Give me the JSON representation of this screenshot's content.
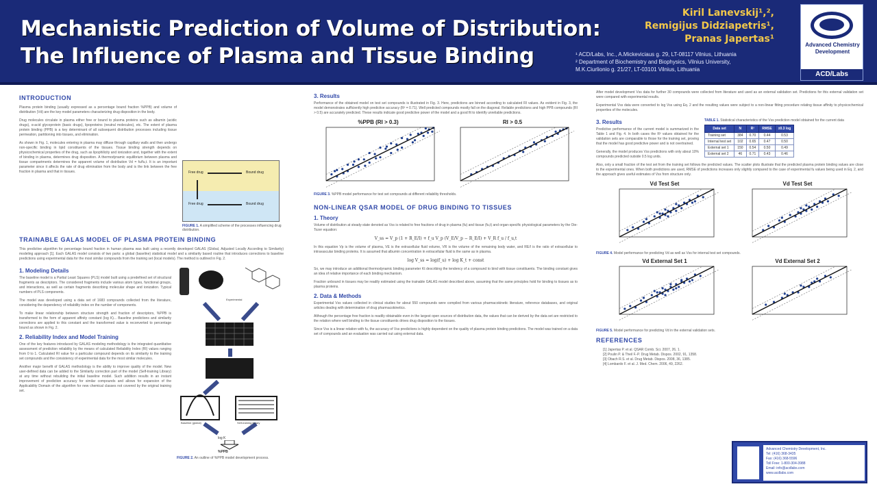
{
  "header": {
    "title_line1": "Mechanistic Prediction of Volume of Distribution:",
    "title_line2": "The Influence of Plasma and Tissue Binding",
    "authors": [
      "Kiril Lanevskij¹,²,",
      "Remigijus Didziapetris¹,",
      "Pranas Japertas¹"
    ],
    "affiliations": [
      "¹ ACD/Labs, Inc., A.Mickeviciaus g. 29, LT-08117 Vilnius, Lithuania",
      "² Department of Biochemistry and Biophysics, Vilnius University,",
      "  M.K.Ciurlionio g. 21/27, LT-03101 Vilnius, Lithuania"
    ],
    "logo_text": "Advanced Chemistry Development",
    "logo_brand": "ACD/Labs"
  },
  "col1": {
    "intro_heading": "INTRODUCTION",
    "intro_p1": "Plasma protein binding (usually expressed as a percentage bound fraction %PPB) and volume of distribution (Vd) are the key model parameters characterizing drug disposition in the body.",
    "intro_p2": "Drug molecules circulate in plasma either free or bound to plasma proteins such as albumin (acidic drugs), α-acid glycoprotein (basic drugs), lipoproteins (neutral molecules), etc. The extent of plasma protein binding (PPB) is a key determinant of all subsequent distribution processes including tissue permeation, partitioning into tissues, and elimination.",
    "intro_p3": "As shown in Fig. 1, molecules entering in plasma may diffuse through capillary walls and then undergo non-specific binding in lipid constituents of the tissues. Tissue binding strength depends on physicochemical properties of the drug, such as lipophilicity and ionization and, together with the extent of binding in plasma, determines drug disposition. A thermodynamic equilibrium between plasma and tissue compartments determines the apparent volume of distribution Vd = fu/fu,t. It is an important parameter since it affects the rate of drug elimination from the body and is the link between the free fraction in plasma and that in tissues.",
    "fig1_caption_label": "FIGURE 1.",
    "fig1_caption": "A simplified scheme of the processes influencing drug distribution.",
    "fig1_free_top": "Free drug",
    "fig1_bound_top": "Bound drug",
    "fig1_free_bot": "Free drug",
    "fig1_bound_bot": "Bound drug",
    "galas_heading": "TRAINABLE GALAS MODEL OF PLASMA PROTEIN BINDING",
    "galas_p1": "This predictive algorithm for percentage bound fraction in human plasma was built using a recently developed GALAS (Global, Adjusted Locally According to Similarity) modeling approach [1]. Each GALAS model consists of two parts: a global (baseline) statistical model and a similarity based routine that introduces corrections to baseline predictions using experimental data for the most similar compounds from the training set (local models). The method is outlined in Fig. 2.",
    "sub1": "1. Modeling Details",
    "sub1_p1": "The baseline model is a Partial Least Squares (PLS) model built using a predefined set of structural fragments as descriptors. The considered fragments include various atom types, functional groups, and interactions, as well as certain fragments describing molecular shape and ionization. Typical numbers of PLS components.",
    "sub1_p2": "The model was developed using a data set of 1683 compounds collected from the literature, considering the dependency of reliability index on the number of components.",
    "sub1_p3": "To make linear relationship between structure strength and fraction of descriptors, %PPB is transformed to the form of apparent affinity constant (log K)... Baseline predictions and similarity corrections are applied to this constant and the transformed value is reconverted to percentage bound as shown in Fig. 2.",
    "sub2": "2. Reliability Index and Model Training",
    "sub2_p1": "One of the key features introduced by GALAS modeling methodology is the integrated quantitative assessment of prediction reliability by the means of calculated Reliability Index (RI) values ranging from 0 to 1. Calculated RI value for a particular compound depends on its similarity to the training set compounds and the consistency of experimental data for the most similar molecules.",
    "sub2_p2": "Another major benefit of GALAS methodology is the ability to improve quality of the model. New user-defined data can be added to the Similarity correction part of the model (Self-training Library) at any time without rebuilding the initial baseline model. Such addition results in an instant improvement of prediction accuracy for similar compounds and allows for expansion of the Applicability Domain of the algorithm for new chemical classes not covered by the original training set.",
    "flow_labels": [
      "Experimental",
      "Baseline (global)",
      "Similarity",
      "Self-training library",
      "log K",
      "%PPB"
    ],
    "fig2_caption_label": "FIGURE 2.",
    "fig2_caption": "An outline of %PPB model development process."
  },
  "col2": {
    "results_heading": "3. Results",
    "results_p1": "Performance of the obtained model on test set compounds is illustrated in Fig. 3. Here, predictions are binned according to calculated RI values. As evident in Fig. 3, the model demonstrates sufficiently high predictive accuracy (R² = 0.71). Well predicted compounds mostly fall on the diagonal. Reliable predictions and high PPB compounds (RI > 0.5) are accurately predicted. These results indicate good predictive power of the model and a good fit to identify unreliable predictions.",
    "chart_title_a": "%PPB (RI > 0.3)",
    "chart_title_b": "RI > 0.5",
    "fig3_caption_label": "FIGURE 3.",
    "fig3_caption": "%PPB model performance for test set compounds at different reliability thresholds.",
    "qsar_heading": "NON-LINEAR QSAR MODEL OF DRUG BINDING TO TISSUES",
    "theory_heading": "1. Theory",
    "theory_p1": "Volume of distribution at steady-state denoted as Vss is related to free fractions of drug in plasma (fu) and tissue (fu,t) and organ-specific physiological parameters by the Oie-Tozer equation:",
    "eq1": "V_ss = V_p (1 + R_E/I) + f_u V_p (V_E/V_p − R_E/I) + V_R f_u / f_u,t",
    "theory_p2": "In this equation Vp is the volume of plasma, VE is the extracellular fluid volume, VR is the volume of the remaining body water, and RE/I is the ratio of extracellular to intravascular binding proteins. It is assumed that albumin concentration in extracellular fluid is the same as in plasma.",
    "eq2": "log V_ss = log(f_u) + log K_t + const",
    "theory_p3": "So, we may introduce an additional thermodynamic binding parameter Kt describing the tendency of a compound to bind with tissue constituents. The binding constant gives an idea of relative importance of each binding mechanism.",
    "theory_p4": "Fraction unbound in tissues may be readily estimated using the trainable GALAS model described above, assuming that the same principles hold for binding to tissues as to plasma proteins.",
    "data_heading": "2. Data & Methods",
    "data_p1": "Experimental Vss values collected in clinical studies for about 550 compounds were compiled from various pharmacokinetic literature, reference databases, and original articles dealing with determination of drug pharmacokinetics.",
    "data_p2": "Although the percentage free fraction is readily obtainable even in the largest open sources of distribution data, the values that can be derived by the data set are restricted to the relation where well binding to the tissue constituents drives drug disposition to the tissues.",
    "data_p3": "Since Vss is a linear relation with fu, the accuracy of Vss predictions is highly dependent on the quality of plasma protein binding predictions. The model was trained on a data set of compounds and an evaluation was carried out using external data."
  },
  "col3": {
    "intro_p1": "After model development Vss data for further 30 compounds were collected from literature and used as an external validation set. Predictions for this external validation set were compared with experimental results.",
    "intro_p2": "Experimental Vss data were converted to log Vss using Eq. 2 and the resulting values were subject to a non-linear fitting procedure relating tissue affinity to physicochemical properties of the molecules.",
    "results_heading": "3. Results",
    "results_p1": "Predictive performance of the current model is summarized in the Table 1 and Fig. 4. In both cases the R² values obtained for the validation sets are comparable to those for the training set, proving that the model has good predictive power and is not overtrained.",
    "table_caption_label": "TABLE 1.",
    "table_caption": "Statistical characteristics of the Vss prediction model obtained for the current data",
    "table_headers": [
      "Data set",
      "N",
      "R²",
      "RMSE",
      "±0.3 log"
    ],
    "table_rows": [
      [
        "Training set",
        "384",
        "0.70",
        "0.44",
        "0.53"
      ],
      [
        "Internal test set",
        "102",
        "0.65",
        "0.47",
        "0.50"
      ],
      [
        "External set 1",
        "150",
        "0.54",
        "0.50",
        "0.49"
      ],
      [
        "External set 2",
        "46",
        "0.71",
        "0.43",
        "0.46"
      ]
    ],
    "results_p2": "Generally, the model produces Vss predictions with only about 10% compounds predicted outside 0.5 log units.",
    "results_p3": "Also, only a small fraction of the test set from the training set follows the predicted values. The scatter plots illustrate that the predicted plasma protein binding values are close to the experimental ones. When both predictions are used, RMSE of predictions increases only slightly compared to the case of experimental fu values being used in Eq. 2, and the approach gives useful estimates of Vss from structure only.",
    "chart_titles": [
      "Vd Test Set",
      "Vd Test Set",
      "Vd External Set 1",
      "Vd External Set 2"
    ],
    "fig4_caption_label": "FIGURE 4.",
    "fig4_caption": "Model performance for predicting Vd as well as Vss for internal test set compounds.",
    "fig5_caption_label": "FIGURE 5.",
    "fig5_caption": "Model performance for predicting Vd in the external validation sets.",
    "ref_heading": "REFERENCES",
    "references": [
      "[1] Japertas P. et al. QSAR Comb. Sci. 2007, 26, 1.",
      "[2] Poulin P. & Theil F.-P. Drug Metab. Dispos. 2002, 91, 1358.",
      "[3] Obach R.S. et al. Drug Metab. Dispos. 2008, 36, 1385.",
      "[4] Lombardo F. et al. J. Med. Chem. 2006, 49, 2262."
    ],
    "contact_lines": [
      "Advanced Chemistry Development, Inc.",
      "Tel: (416) 368-3435",
      "Fax: (416) 368-5596",
      "Toll Free: 1-800-304-3988",
      "Email: info@acdlabs.com",
      "www.acdlabs.com"
    ]
  },
  "chart_data": [
    {
      "type": "scatter",
      "title": "%PPB (RI > 0.3)",
      "xlim": [
        0,
        100
      ],
      "ylim": [
        0,
        100
      ],
      "points": [
        [
          5,
          12
        ],
        [
          10,
          8
        ],
        [
          15,
          22
        ],
        [
          20,
          18
        ],
        [
          25,
          30
        ],
        [
          30,
          26
        ],
        [
          35,
          40
        ],
        [
          40,
          34
        ],
        [
          45,
          50
        ],
        [
          50,
          44
        ],
        [
          55,
          60
        ],
        [
          60,
          52
        ],
        [
          65,
          68
        ],
        [
          70,
          62
        ],
        [
          75,
          78
        ],
        [
          80,
          72
        ],
        [
          85,
          88
        ],
        [
          90,
          84
        ],
        [
          95,
          96
        ],
        [
          98,
          92
        ],
        [
          88,
          90
        ],
        [
          92,
          98
        ],
        [
          70,
          80
        ],
        [
          60,
          70
        ],
        [
          50,
          62
        ],
        [
          40,
          52
        ],
        [
          30,
          40
        ],
        [
          20,
          30
        ],
        [
          10,
          20
        ],
        [
          82,
          76
        ],
        [
          78,
          86
        ],
        [
          66,
          58
        ],
        [
          56,
          64
        ],
        [
          46,
          42
        ],
        [
          36,
          28
        ],
        [
          26,
          36
        ],
        [
          16,
          14
        ],
        [
          8,
          18
        ],
        [
          94,
          90
        ],
        [
          99,
          99
        ]
      ]
    },
    {
      "type": "scatter",
      "title": "RI > 0.5",
      "xlim": [
        0,
        100
      ],
      "ylim": [
        0,
        100
      ],
      "points": [
        [
          10,
          12
        ],
        [
          20,
          22
        ],
        [
          30,
          28
        ],
        [
          40,
          42
        ],
        [
          50,
          48
        ],
        [
          60,
          62
        ],
        [
          70,
          68
        ],
        [
          80,
          82
        ],
        [
          90,
          88
        ],
        [
          95,
          96
        ],
        [
          85,
          84
        ],
        [
          75,
          76
        ],
        [
          65,
          64
        ],
        [
          55,
          56
        ],
        [
          45,
          46
        ],
        [
          35,
          34
        ],
        [
          25,
          26
        ],
        [
          15,
          16
        ],
        [
          92,
          94
        ],
        [
          98,
          98
        ],
        [
          88,
          92
        ],
        [
          78,
          74
        ],
        [
          68,
          72
        ],
        [
          58,
          54
        ]
      ]
    },
    {
      "type": "scatter",
      "title": "Vd Test Set",
      "xlim": [
        -1.5,
        2
      ],
      "ylim": [
        -1.5,
        2
      ],
      "points": [
        [
          -1.2,
          -1.0
        ],
        [
          -1.0,
          -0.8
        ],
        [
          -0.8,
          -0.9
        ],
        [
          -0.6,
          -0.4
        ],
        [
          -0.4,
          -0.5
        ],
        [
          -0.2,
          0.0
        ],
        [
          0.0,
          -0.1
        ],
        [
          0.1,
          0.2
        ],
        [
          0.2,
          0.1
        ],
        [
          0.3,
          0.4
        ],
        [
          0.4,
          0.3
        ],
        [
          0.5,
          0.6
        ],
        [
          0.6,
          0.4
        ],
        [
          0.7,
          0.8
        ],
        [
          0.8,
          0.6
        ],
        [
          0.9,
          1.0
        ],
        [
          1.0,
          0.9
        ],
        [
          1.1,
          1.2
        ],
        [
          1.2,
          1.0
        ],
        [
          1.4,
          1.5
        ],
        [
          1.6,
          1.4
        ],
        [
          -0.5,
          -0.2
        ],
        [
          0.2,
          0.5
        ],
        [
          0.6,
          0.9
        ],
        [
          0.3,
          0.0
        ],
        [
          -0.1,
          0.3
        ],
        [
          1.3,
          1.1
        ],
        [
          0.0,
          0.2
        ]
      ]
    },
    {
      "type": "scatter",
      "title": "Vd Test Set",
      "xlim": [
        -1.5,
        2
      ],
      "ylim": [
        -1.5,
        2
      ],
      "points": [
        [
          -1.1,
          -1.0
        ],
        [
          -0.9,
          -0.7
        ],
        [
          -0.7,
          -0.8
        ],
        [
          -0.5,
          -0.3
        ],
        [
          -0.3,
          -0.4
        ],
        [
          -0.1,
          0.1
        ],
        [
          0.1,
          0.0
        ],
        [
          0.2,
          0.3
        ],
        [
          0.3,
          0.2
        ],
        [
          0.4,
          0.5
        ],
        [
          0.5,
          0.4
        ],
        [
          0.6,
          0.7
        ],
        [
          0.7,
          0.5
        ],
        [
          0.8,
          0.9
        ],
        [
          0.9,
          0.7
        ],
        [
          1.0,
          1.1
        ],
        [
          1.1,
          1.0
        ],
        [
          1.2,
          1.3
        ],
        [
          1.3,
          1.1
        ],
        [
          1.5,
          1.6
        ],
        [
          1.7,
          1.5
        ],
        [
          -0.4,
          -0.1
        ],
        [
          0.3,
          0.6
        ],
        [
          0.5,
          0.8
        ]
      ]
    },
    {
      "type": "scatter",
      "title": "Vd External Set 1",
      "xlim": [
        -1.5,
        2
      ],
      "ylim": [
        -1.5,
        2
      ],
      "points": [
        [
          -1.3,
          -1.1
        ],
        [
          -1.1,
          -0.9
        ],
        [
          -0.9,
          -1.0
        ],
        [
          -0.7,
          -0.5
        ],
        [
          -0.5,
          -0.6
        ],
        [
          -0.3,
          -0.1
        ],
        [
          -0.1,
          -0.2
        ],
        [
          0.0,
          0.1
        ],
        [
          0.1,
          0.0
        ],
        [
          0.2,
          0.3
        ],
        [
          0.3,
          0.2
        ],
        [
          0.4,
          0.5
        ],
        [
          0.5,
          0.3
        ],
        [
          0.6,
          0.7
        ],
        [
          0.7,
          0.5
        ],
        [
          0.8,
          0.9
        ],
        [
          0.9,
          0.8
        ],
        [
          1.0,
          1.1
        ],
        [
          1.1,
          0.9
        ],
        [
          1.3,
          1.4
        ],
        [
          1.5,
          1.3
        ],
        [
          -0.6,
          -0.3
        ],
        [
          0.1,
          0.4
        ],
        [
          0.4,
          0.7
        ],
        [
          0.2,
          -0.1
        ],
        [
          -0.2,
          0.2
        ],
        [
          1.2,
          1.0
        ],
        [
          -0.1,
          0.1
        ],
        [
          0.6,
          0.4
        ],
        [
          0.8,
          1.0
        ]
      ]
    },
    {
      "type": "scatter",
      "title": "Vd External Set 2",
      "xlim": [
        -1.5,
        2
      ],
      "ylim": [
        -1.5,
        2
      ],
      "points": [
        [
          -1.0,
          -0.8
        ],
        [
          -0.7,
          -0.6
        ],
        [
          -0.4,
          -0.3
        ],
        [
          -0.2,
          -0.1
        ],
        [
          0.0,
          0.1
        ],
        [
          0.2,
          0.1
        ],
        [
          0.4,
          0.5
        ],
        [
          0.6,
          0.5
        ],
        [
          0.8,
          0.9
        ],
        [
          1.0,
          0.9
        ],
        [
          1.2,
          1.3
        ],
        [
          1.4,
          1.2
        ],
        [
          0.3,
          0.6
        ],
        [
          -0.3,
          0.0
        ],
        [
          0.7,
          0.8
        ],
        [
          0.9,
          1.1
        ]
      ]
    }
  ]
}
